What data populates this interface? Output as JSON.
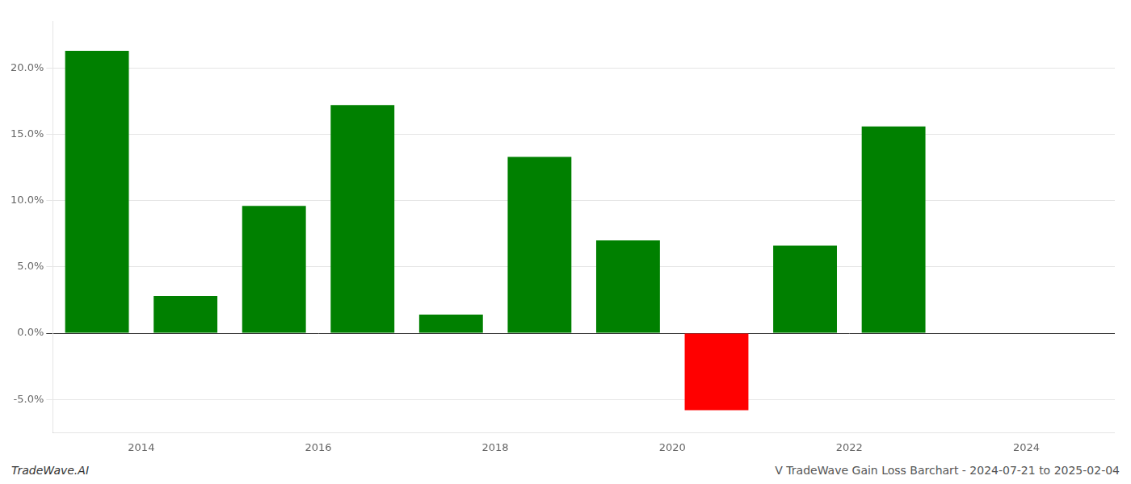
{
  "chart_data": {
    "type": "bar",
    "x": [
      2013.5,
      2014.5,
      2015.5,
      2016.5,
      2017.5,
      2018.5,
      2019.5,
      2020.5,
      2021.5,
      2022.5
    ],
    "values": [
      0.213,
      0.028,
      0.096,
      0.172,
      0.014,
      0.133,
      0.07,
      -0.058,
      0.066,
      0.156
    ],
    "colors": [
      "#008000",
      "#008000",
      "#008000",
      "#008000",
      "#008000",
      "#008000",
      "#008000",
      "#ff0000",
      "#008000",
      "#008000"
    ],
    "xlim": [
      2013.0,
      2025.0
    ],
    "xticks": [
      2014,
      2016,
      2018,
      2020,
      2022,
      2024
    ],
    "ylim": [
      -0.075,
      0.235
    ],
    "yticks": [
      {
        "value": -0.05,
        "label": "-5.0%"
      },
      {
        "value": 0.0,
        "label": "0.0%"
      },
      {
        "value": 0.05,
        "label": "5.0%"
      },
      {
        "value": 0.1,
        "label": "10.0%"
      },
      {
        "value": 0.15,
        "label": "15.0%"
      },
      {
        "value": 0.2,
        "label": "20.0%"
      }
    ],
    "grid": "y",
    "annotations": [
      "TradeWave.AI",
      "V TradeWave Gain Loss Barchart - 2024-07-21 to 2025-02-04"
    ]
  }
}
